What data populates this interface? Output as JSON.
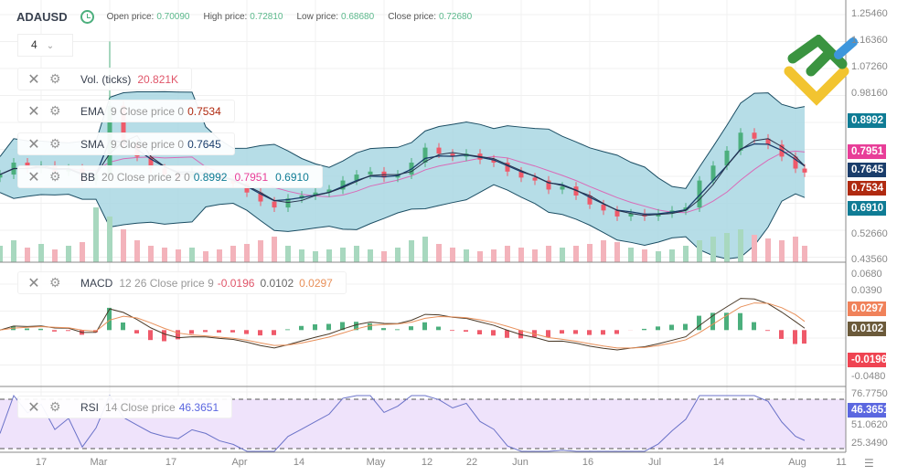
{
  "header": {
    "symbol": "ADAUSD",
    "open_label": "Open price:",
    "open": "0.70090",
    "high_label": "High price:",
    "high": "0.72810",
    "low_label": "Low price:",
    "low": "0.68680",
    "close_label": "Close price:",
    "close": "0.72680",
    "interval": "4"
  },
  "legends": {
    "vol": {
      "name": "Vol. (ticks)",
      "value": "20.821K"
    },
    "ema": {
      "name": "EMA",
      "params": "9 Close price 0",
      "value": "0.7534"
    },
    "sma": {
      "name": "SMA",
      "params": "9 Close price 0",
      "value": "0.7645"
    },
    "bb": {
      "name": "BB",
      "params": "20 Close price 2 0",
      "upper": "0.8992",
      "middle": "0.7951",
      "lower": "0.6910"
    },
    "macd": {
      "name": "MACD",
      "params": "12 26 Close price 9",
      "hist": "-0.0196",
      "macd": "0.0102",
      "signal": "0.0297"
    },
    "rsi": {
      "name": "RSI",
      "params": "14 Close price",
      "value": "46.3651"
    }
  },
  "price_tags": [
    {
      "value": "0.8992",
      "color": "#0f7c95"
    },
    {
      "value": "0.7951",
      "color": "#e83e98"
    },
    {
      "value": "0.7645",
      "color": "#1a3d6b"
    },
    {
      "value": "0.7534",
      "color": "#b02a10"
    },
    {
      "value": "0.6910",
      "color": "#0f7c95"
    },
    {
      "value": "0.0297",
      "color": "#f0825a"
    },
    {
      "value": "0.0102",
      "color": "#6b5a3a"
    },
    {
      "value": "-0.0196",
      "color": "#ef4452"
    },
    {
      "value": "46.3651",
      "color": "#5b67e0"
    }
  ],
  "chart_data": {
    "type": "candlestick",
    "price_axis": {
      "ticks": [
        "1.25460",
        "1.16360",
        "1.07260",
        "0.98160",
        "0.52660",
        "0.43560"
      ],
      "range": [
        0.4356,
        1.2546
      ]
    },
    "macd_axis": {
      "ticks": [
        "0.0680",
        "0.0390",
        "-0.0480"
      ],
      "range": [
        -0.048,
        0.068
      ]
    },
    "rsi_axis": {
      "ticks": [
        "76.7750",
        "51.0620",
        "25.3490"
      ],
      "range": [
        25.349,
        76.775
      ]
    },
    "x_ticks": [
      "17",
      "Mar",
      "17",
      "Apr",
      "14",
      "May",
      "12",
      "22",
      "Jun",
      "16",
      "Jul",
      "14",
      "Aug",
      "11"
    ],
    "dates_start": "Feb 8",
    "step_days": 3,
    "close": [
      0.72,
      0.76,
      0.74,
      0.75,
      0.73,
      0.74,
      0.7,
      0.72,
      0.95,
      0.82,
      0.78,
      0.74,
      0.72,
      0.71,
      0.73,
      0.72,
      0.7,
      0.69,
      0.66,
      0.63,
      0.61,
      0.64,
      0.65,
      0.66,
      0.67,
      0.7,
      0.72,
      0.73,
      0.71,
      0.72,
      0.76,
      0.81,
      0.79,
      0.78,
      0.79,
      0.77,
      0.76,
      0.73,
      0.71,
      0.7,
      0.67,
      0.68,
      0.65,
      0.62,
      0.6,
      0.58,
      0.59,
      0.58,
      0.59,
      0.6,
      0.61,
      0.7,
      0.75,
      0.8,
      0.86,
      0.84,
      0.82,
      0.78,
      0.74,
      0.7268
    ],
    "volume": [
      9,
      12,
      8,
      10,
      7,
      9,
      11,
      30,
      25,
      18,
      12,
      9,
      8,
      7,
      8,
      6,
      7,
      9,
      10,
      12,
      14,
      9,
      7,
      6,
      7,
      8,
      9,
      7,
      6,
      8,
      12,
      14,
      10,
      8,
      7,
      6,
      7,
      9,
      8,
      7,
      9,
      8,
      9,
      10,
      12,
      11,
      8,
      7,
      6,
      7,
      9,
      12,
      14,
      16,
      18,
      15,
      13,
      12,
      14,
      9
    ],
    "colors": {
      "up": "#4caf7d",
      "down": "#ef5a6a",
      "bb_fill": "#a9d7e3",
      "bb_line": "#1b4d63",
      "ema": "#1a3d6b",
      "sma": "#26304a",
      "bb_mid": "#d96bb8",
      "macd": "#4a3a28",
      "signal": "#e8905a",
      "rsi": "#6a72c8",
      "rsi_fill": "#efe3fb"
    }
  }
}
